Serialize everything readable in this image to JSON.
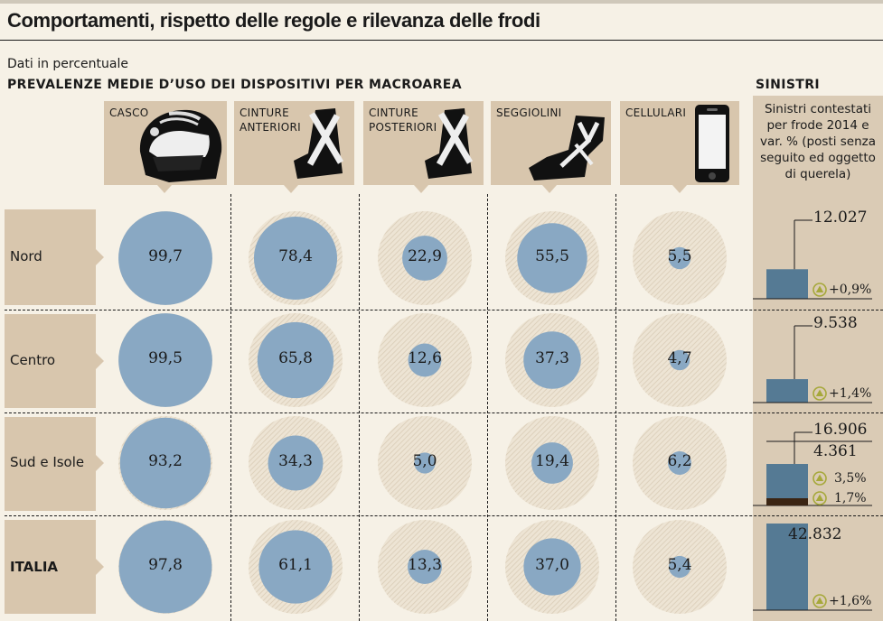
{
  "title": "Comportamenti, rispetto delle regole e rilevanza delle frodi",
  "subtitle": "Dati in percentuale",
  "heading": "PREVALENZE MEDIE D’USO DEI DISPOSITIVI PER MACROAREA",
  "columns": [
    {
      "label_lines": [
        "CASCO"
      ],
      "icon": "helmet-icon"
    },
    {
      "label_lines": [
        "CINTURE",
        "ANTERIORI"
      ],
      "icon": "front-seatbelt-icon"
    },
    {
      "label_lines": [
        "CINTURE",
        "POSTERIORI"
      ],
      "icon": "rear-seatbelt-icon"
    },
    {
      "label_lines": [
        "SEGGIOLINI"
      ],
      "icon": "child-seat-icon"
    },
    {
      "label_lines": [
        "CELLULARI"
      ],
      "icon": "mobile-phone-icon"
    }
  ],
  "rows": [
    "Nord",
    "Centro",
    "Sud e Isole",
    "ITALIA"
  ],
  "sinistri": {
    "heading": "SINISTRI",
    "caption_lines": [
      "Sinistri contestati",
      "per frode 2014 e",
      "var. % (posti senza",
      "seguito ed oggetto",
      "di querela)"
    ],
    "rows": [
      {
        "labels": [
          "12.027"
        ],
        "vars": [
          "+0,9%"
        ]
      },
      {
        "labels": [
          "9.538"
        ],
        "vars": [
          "+1,4%"
        ]
      },
      {
        "labels": [
          "16.906",
          "4.361"
        ],
        "vars": [
          "3,5%",
          "1,7%"
        ]
      },
      {
        "labels": [
          "42.832"
        ],
        "vars": [
          "+1,6%"
        ]
      }
    ]
  },
  "colors": {
    "bubble": "#89a8c3",
    "bubble_bg": "#e6dcca",
    "bar_blue": "#557a94",
    "bar_dark": "#3b2513",
    "panel": "#dacbb5",
    "header": "#d8c6ad",
    "tri": "#a6a83a"
  },
  "chart_data": [
    {
      "type": "bubble",
      "title": "PREVALENZE MEDIE D’USO DEI DISPOSITIVI PER MACROAREA",
      "unit": "%",
      "categories": [
        "Nord",
        "Centro",
        "Sud e Isole",
        "ITALIA"
      ],
      "max_value": 100,
      "series": [
        {
          "name": "CASCO",
          "values": [
            99.7,
            99.5,
            93.2,
            97.8
          ],
          "labels": [
            "99,7",
            "99,5",
            "93,2",
            "97,8"
          ]
        },
        {
          "name": "CINTURE ANTERIORI",
          "values": [
            78.4,
            65.8,
            34.3,
            61.1
          ],
          "labels": [
            "78,4",
            "65,8",
            "34,3",
            "61,1"
          ]
        },
        {
          "name": "CINTURE POSTERIORI",
          "values": [
            22.9,
            12.6,
            5.0,
            13.3
          ],
          "labels": [
            "22,9",
            "12,6",
            "5,0",
            "13,3"
          ]
        },
        {
          "name": "SEGGIOLINI",
          "values": [
            55.5,
            37.3,
            19.4,
            37.0
          ],
          "labels": [
            "55,5",
            "37,3",
            "19,4",
            "37,0"
          ]
        },
        {
          "name": "CELLULARI",
          "values": [
            5.5,
            4.7,
            6.2,
            5.4
          ],
          "labels": [
            "5,5",
            "4,7",
            "6,2",
            "5,4"
          ]
        }
      ]
    },
    {
      "type": "bar",
      "title": "SINISTRI",
      "categories": [
        "Nord",
        "Centro",
        "Sud e Isole",
        "ITALIA"
      ],
      "series": [
        {
          "name": "Sinistri contestati per frode 2014",
          "values": [
            12027,
            9538,
            16906,
            42832
          ]
        },
        {
          "name": "Posti senza seguito ed oggetto di querela",
          "values": [
            null,
            null,
            4361,
            null
          ]
        }
      ],
      "var_pct": [
        0.9,
        1.4,
        3.5,
        1.6
      ],
      "var_pct_second": [
        null,
        null,
        1.7,
        null
      ]
    }
  ]
}
